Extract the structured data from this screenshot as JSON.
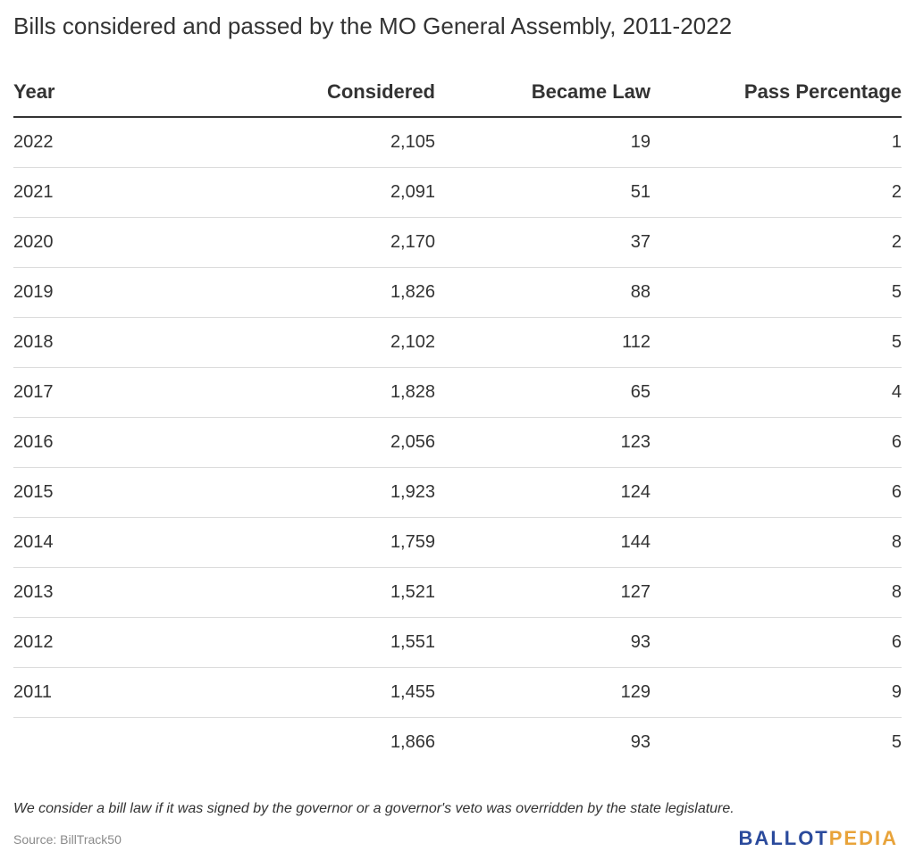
{
  "title": "Bills considered and passed by the MO General Assembly, 2011-2022",
  "chart_data": {
    "type": "table",
    "columns": [
      "Year",
      "Considered",
      "Became Law",
      "Pass Percentage"
    ],
    "rows": [
      [
        "2022",
        "2,105",
        "19",
        "1"
      ],
      [
        "2021",
        "2,091",
        "51",
        "2"
      ],
      [
        "2020",
        "2,170",
        "37",
        "2"
      ],
      [
        "2019",
        "1,826",
        "88",
        "5"
      ],
      [
        "2018",
        "2,102",
        "112",
        "5"
      ],
      [
        "2017",
        "1,828",
        "65",
        "4"
      ],
      [
        "2016",
        "2,056",
        "123",
        "6"
      ],
      [
        "2015",
        "1,923",
        "124",
        "6"
      ],
      [
        "2014",
        "1,759",
        "144",
        "8"
      ],
      [
        "2013",
        "1,521",
        "127",
        "8"
      ],
      [
        "2012",
        "1,551",
        "93",
        "6"
      ],
      [
        "2011",
        "1,455",
        "129",
        "9"
      ],
      [
        "",
        "1,866",
        "93",
        "5"
      ]
    ]
  },
  "footnote": "We consider a bill law if it was signed by the governor or a governor's veto was overridden by the state legislature.",
  "source": "Source: BillTrack50",
  "logo": {
    "part1": "BALLOT",
    "part2": "PEDIA",
    "color1": "#2a4a9c",
    "color2": "#e8a33a"
  }
}
